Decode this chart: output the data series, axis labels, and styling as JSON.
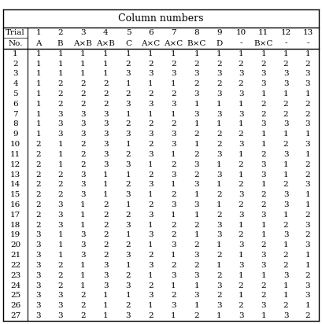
{
  "title": "Column numbers",
  "col_headers_line1": [
    "Trial",
    "1",
    "2",
    "3",
    "4",
    "5",
    "6",
    "7",
    "8",
    "9",
    "10",
    "11",
    "12",
    "13"
  ],
  "col_headers_line2": [
    "No.",
    "A",
    "B",
    "A×B",
    "A×B",
    "C",
    "A×C",
    "A×C",
    "B×C",
    "D",
    "-",
    "B×C",
    "-",
    "-"
  ],
  "rows": [
    [
      1,
      1,
      1,
      1,
      1,
      1,
      1,
      1,
      1,
      1,
      1,
      1,
      1,
      1
    ],
    [
      2,
      1,
      1,
      1,
      1,
      2,
      2,
      2,
      2,
      2,
      2,
      2,
      2,
      2
    ],
    [
      3,
      1,
      1,
      1,
      1,
      3,
      3,
      3,
      3,
      3,
      3,
      3,
      3,
      3
    ],
    [
      4,
      1,
      2,
      2,
      2,
      1,
      1,
      1,
      2,
      2,
      2,
      3,
      3,
      3
    ],
    [
      5,
      1,
      2,
      2,
      2,
      2,
      2,
      2,
      3,
      3,
      3,
      1,
      1,
      1
    ],
    [
      6,
      1,
      2,
      2,
      2,
      3,
      3,
      3,
      1,
      1,
      1,
      2,
      2,
      2
    ],
    [
      7,
      1,
      3,
      3,
      3,
      1,
      1,
      1,
      3,
      3,
      3,
      2,
      2,
      2
    ],
    [
      8,
      1,
      3,
      3,
      3,
      2,
      2,
      2,
      1,
      1,
      1,
      3,
      3,
      3
    ],
    [
      9,
      1,
      3,
      3,
      3,
      3,
      3,
      3,
      2,
      2,
      2,
      1,
      1,
      1
    ],
    [
      10,
      2,
      1,
      2,
      3,
      1,
      2,
      3,
      1,
      2,
      3,
      1,
      2,
      3
    ],
    [
      11,
      2,
      1,
      2,
      3,
      2,
      3,
      1,
      2,
      3,
      1,
      2,
      3,
      1
    ],
    [
      12,
      2,
      1,
      2,
      3,
      3,
      1,
      2,
      3,
      1,
      2,
      3,
      1,
      2
    ],
    [
      13,
      2,
      2,
      3,
      1,
      1,
      2,
      3,
      2,
      3,
      1,
      3,
      1,
      2
    ],
    [
      14,
      2,
      2,
      3,
      1,
      2,
      3,
      1,
      3,
      1,
      2,
      1,
      2,
      3
    ],
    [
      15,
      2,
      2,
      3,
      1,
      3,
      1,
      2,
      1,
      2,
      3,
      2,
      3,
      1
    ],
    [
      16,
      2,
      3,
      1,
      2,
      1,
      2,
      3,
      3,
      1,
      2,
      2,
      3,
      1
    ],
    [
      17,
      2,
      3,
      1,
      2,
      2,
      3,
      1,
      1,
      2,
      3,
      3,
      1,
      2
    ],
    [
      18,
      2,
      3,
      1,
      2,
      3,
      1,
      2,
      2,
      3,
      1,
      1,
      2,
      3
    ],
    [
      19,
      3,
      1,
      3,
      2,
      1,
      3,
      2,
      1,
      3,
      2,
      1,
      3,
      2
    ],
    [
      20,
      3,
      1,
      3,
      2,
      2,
      1,
      3,
      2,
      1,
      3,
      2,
      1,
      3
    ],
    [
      21,
      3,
      1,
      3,
      2,
      3,
      2,
      1,
      3,
      2,
      1,
      3,
      2,
      1
    ],
    [
      22,
      3,
      2,
      1,
      3,
      1,
      3,
      2,
      2,
      1,
      3,
      3,
      2,
      1
    ],
    [
      23,
      3,
      2,
      1,
      3,
      2,
      1,
      3,
      3,
      2,
      1,
      1,
      3,
      2
    ],
    [
      24,
      3,
      2,
      1,
      3,
      3,
      2,
      1,
      1,
      3,
      2,
      2,
      1,
      3
    ],
    [
      25,
      3,
      3,
      2,
      1,
      1,
      3,
      2,
      3,
      2,
      1,
      2,
      1,
      3
    ],
    [
      26,
      3,
      3,
      2,
      1,
      2,
      1,
      3,
      1,
      3,
      2,
      3,
      2,
      1
    ],
    [
      27,
      3,
      3,
      2,
      1,
      3,
      2,
      1,
      2,
      1,
      3,
      1,
      3,
      2
    ]
  ],
  "bg_color": "#ffffff",
  "header_bg": "#ffffff",
  "line_color": "#000000",
  "font_size": 7.5,
  "title_font_size": 9
}
